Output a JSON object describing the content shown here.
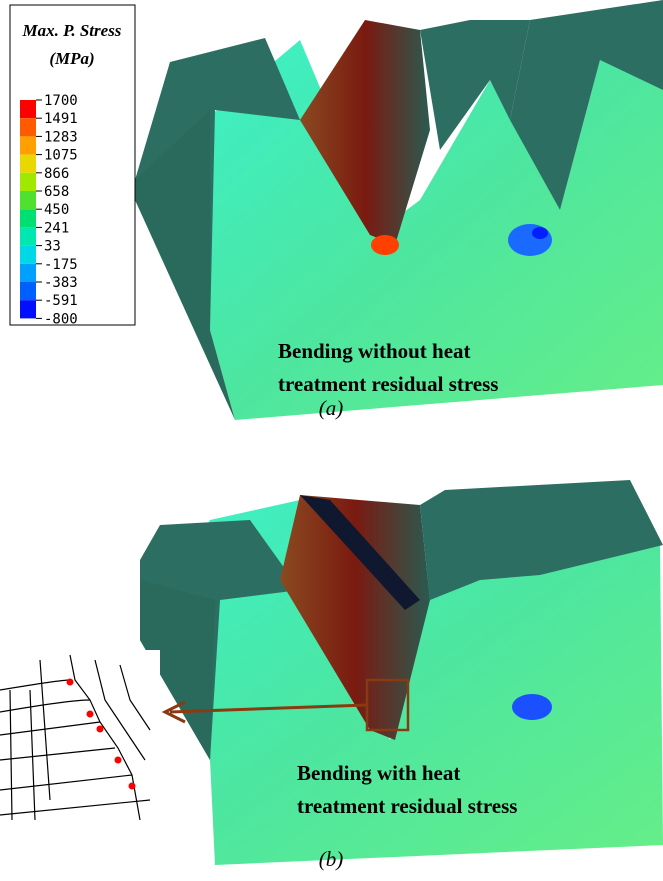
{
  "legend": {
    "title": "Max. P. Stress",
    "unit": "(MPa)",
    "levels": [
      1700,
      1491,
      1283,
      1075,
      866,
      658,
      450,
      241,
      33,
      -175,
      -383,
      -591,
      -800
    ],
    "colors": [
      "#ff0000",
      "#ff5a00",
      "#ffa000",
      "#e8d800",
      "#a0e800",
      "#50e030",
      "#00e070",
      "#00e8b0",
      "#00d8e8",
      "#00a0ff",
      "#0060ff",
      "#0010ff"
    ]
  },
  "panel_a": {
    "caption_lines": [
      "Bending without heat",
      "treatment residual stress"
    ],
    "label": "(a)"
  },
  "panel_b": {
    "caption_lines": [
      "Bending with heat",
      "treatment residual stress"
    ],
    "label": "(b)"
  }
}
